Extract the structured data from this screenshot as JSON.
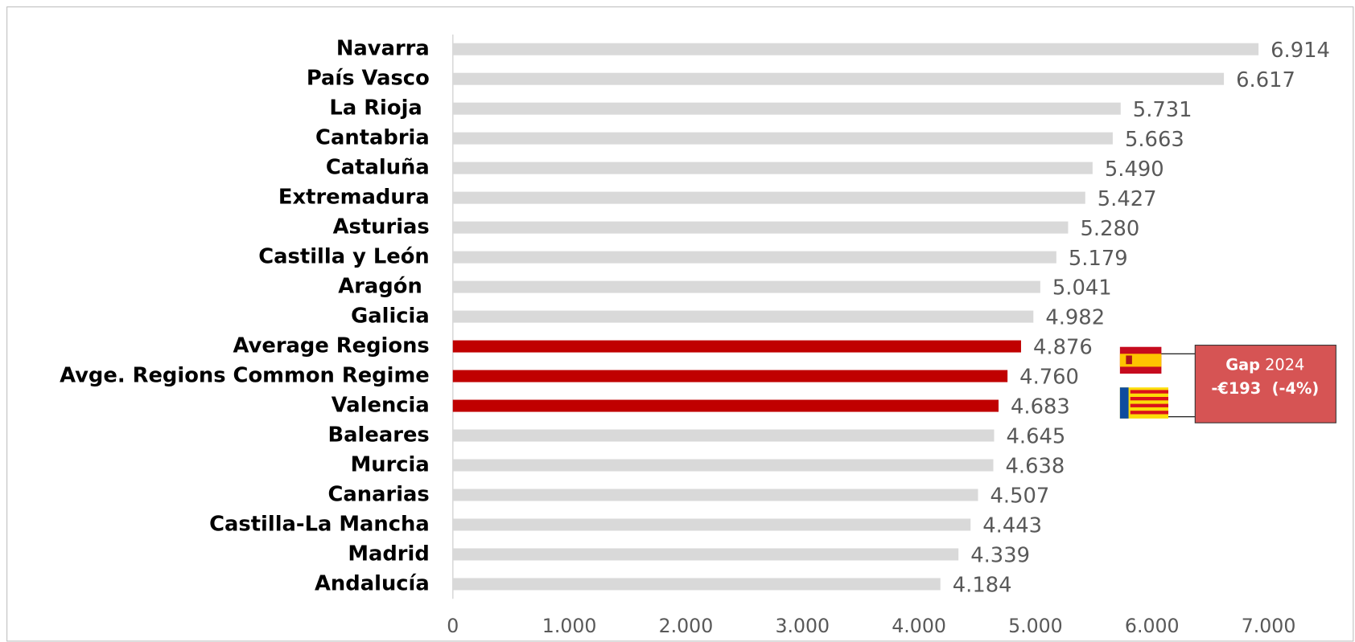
{
  "chart_data": {
    "type": "barh",
    "categories": [
      "Navarra",
      "País Vasco",
      "La Rioja ",
      "Cantabria",
      "Cataluña",
      "Extremadura",
      "Asturias",
      "Castilla y León",
      "Aragón ",
      "Galicia",
      "Average Regions",
      "Avge. Regions Common Regime",
      "Valencia",
      "Baleares",
      "Murcia",
      "Canarias",
      "Castilla-La Mancha",
      "Madrid",
      "Andalucía"
    ],
    "values": [
      6914,
      6617,
      5731,
      5663,
      5490,
      5427,
      5280,
      5179,
      5041,
      4982,
      4876,
      4760,
      4683,
      4645,
      4638,
      4507,
      4443,
      4339,
      4184
    ],
    "value_labels": [
      "6.914",
      "6.617",
      "5.731",
      "5.663",
      "5.490",
      "5.427",
      "5.280",
      "5.179",
      "5.041",
      "4.982",
      "4.876",
      "4.760",
      "4.683",
      "4.645",
      "4.638",
      "4.507",
      "4.443",
      "4.339",
      "4.184"
    ],
    "colors": [
      "#d9d9d9",
      "#d9d9d9",
      "#d9d9d9",
      "#d9d9d9",
      "#d9d9d9",
      "#d9d9d9",
      "#d9d9d9",
      "#d9d9d9",
      "#d9d9d9",
      "#d9d9d9",
      "#c00000",
      "#c00000",
      "#c00000",
      "#d9d9d9",
      "#d9d9d9",
      "#d9d9d9",
      "#d9d9d9",
      "#d9d9d9",
      "#d9d9d9"
    ],
    "xlim": [
      0,
      7000
    ],
    "xticks": [
      0,
      {
        "value": 1000,
        "label": "1.000"
      },
      {
        "value": 2000,
        "label": "2.000"
      },
      {
        "value": 3000,
        "label": "3.000"
      },
      {
        "value": 4000,
        "label": "4.000"
      },
      {
        "value": 5000,
        "label": "5.000"
      },
      {
        "value": 6000,
        "label": "6.000"
      },
      {
        "value": 7000,
        "label": "7.000"
      }
    ],
    "annotation": {
      "title": "Gap",
      "year": "2024",
      "text": "-€193  (-4%)",
      "color": "#d65454"
    }
  }
}
